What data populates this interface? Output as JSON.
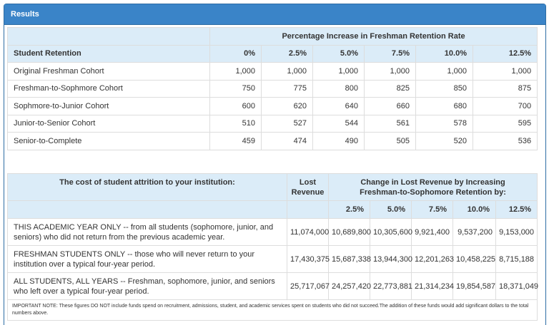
{
  "panel": {
    "title": "Results"
  },
  "retention": {
    "group_header": "Percentage Increase in Freshman Retention Rate",
    "row_header": "Student Retention",
    "columns": [
      "0%",
      "2.5%",
      "5.0%",
      "7.5%",
      "10.0%",
      "12.5%"
    ],
    "rows": [
      {
        "label": "Original Freshman Cohort",
        "values": [
          "1,000",
          "1,000",
          "1,000",
          "1,000",
          "1,000",
          "1,000"
        ]
      },
      {
        "label": "Freshman-to-Sophmore Cohort",
        "values": [
          "750",
          "775",
          "800",
          "825",
          "850",
          "875"
        ]
      },
      {
        "label": "Sophmore-to-Junior Cohort",
        "values": [
          "600",
          "620",
          "640",
          "660",
          "680",
          "700"
        ]
      },
      {
        "label": "Junior-to-Senior Cohort",
        "values": [
          "510",
          "527",
          "544",
          "561",
          "578",
          "595"
        ]
      },
      {
        "label": "Senior-to-Complete",
        "values": [
          "459",
          "474",
          "490",
          "505",
          "520",
          "536"
        ]
      }
    ]
  },
  "attrition": {
    "header": "The cost of student attrition to your institution:",
    "lost_revenue_header": "Lost Revenue",
    "change_header": "Change in Lost Revenue by Increasing Freshman-to-Sophomore Retention by:",
    "columns": [
      "2.5%",
      "5.0%",
      "7.5%",
      "10.0%",
      "12.5%"
    ],
    "rows": [
      {
        "label": "THIS ACADEMIC YEAR ONLY -- from all students (sophomore, junior, and seniors) who did not return from the previous academic year.",
        "lost": "11,074,000",
        "values": [
          "10,689,800",
          "10,305,600",
          "9,921,400",
          "9,537,200",
          "9,153,000"
        ]
      },
      {
        "label": "FRESHMAN STUDENTS ONLY -- those who will never return to your institution over a typical four-year period.",
        "lost": "17,430,375",
        "values": [
          "15,687,338",
          "13,944,300",
          "12,201,263",
          "10,458,225",
          "8,715,188"
        ]
      },
      {
        "label": "ALL STUDENTS, ALL YEARS -- Freshman, sophomore, junior, and seniors who left over a typical four-year period.",
        "lost": "25,717,067",
        "values": [
          "24,257,420",
          "22,773,881",
          "21,314,234",
          "19,854,587",
          "18,371,049"
        ]
      }
    ],
    "note": "IMPORTANT NOTE: These figures DO NOT include funds spend on recruitment, admissions, student, and academic services spent on students who did not succeed.The addition of these funds would add significant dollars to the total numbers above."
  }
}
